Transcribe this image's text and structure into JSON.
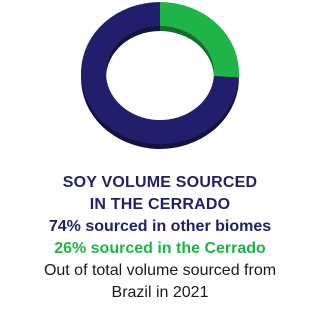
{
  "chart_data": {
    "type": "pie",
    "style": "donut",
    "categories": [
      "other biomes",
      "Cerrado"
    ],
    "values": [
      74,
      26
    ],
    "colors": [
      "#211f6b",
      "#1fb448"
    ]
  },
  "caption": {
    "title_line1": "SOY VOLUME SOURCED",
    "title_line2": "IN THE CERRADO",
    "other_label": "74% sourced in other biomes",
    "cerrado_label": "26% sourced in the Cerrado",
    "note_line1": "Out of total volume sourced from",
    "note_line2": "Brazil in 2021"
  }
}
